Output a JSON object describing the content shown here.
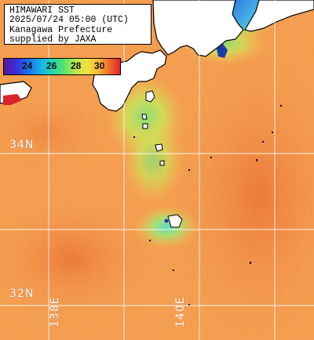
{
  "title": {
    "line1": "HIMAWARI SST",
    "line2": "2025/07/24 05:00 (UTC)",
    "line3": "Kanagawa Prefecture",
    "line4": "supplied by JAXA"
  },
  "colorbar": {
    "ticks": [
      "24",
      "26",
      "28",
      "30"
    ],
    "stops": [
      "#5a189a",
      "#1b6cf0",
      "#20d8b0",
      "#bfe84a",
      "#f7b23a",
      "#e2222a"
    ]
  },
  "grid": {
    "lat_labels": [
      "34N",
      "32N"
    ],
    "lon_labels": [
      "138E",
      "140E"
    ]
  },
  "colors": {
    "ocean_warm": "#f39a4a",
    "ocean_hot": "#ec7a36",
    "ocean_cool": "#b8e650",
    "ocean_coldest": "#3fd4d6",
    "land": "#ffffff",
    "coast": "#000000",
    "grid": "#ffffff"
  }
}
